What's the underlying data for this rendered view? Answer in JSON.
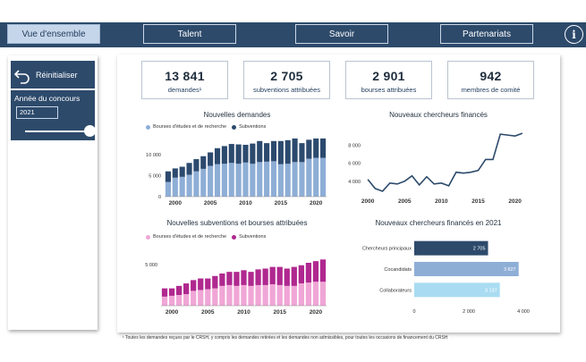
{
  "nav": {
    "tabs": [
      {
        "label": "Vue d'ensemble",
        "active": true
      },
      {
        "label": "Talent",
        "active": false
      },
      {
        "label": "Savoir",
        "active": false
      },
      {
        "label": "Partenariats",
        "active": false
      }
    ],
    "info_icon": "info-circle-icon",
    "info_glyph": "i"
  },
  "sidebar": {
    "reset_label": "Réinitialiser",
    "reset_icon": "undo-arrow-icon",
    "year_label": "Année du concours",
    "year_value": "2021",
    "slider_value": 2021
  },
  "kpis": [
    {
      "value": "13 841",
      "label": "demandes¹"
    },
    {
      "value": "2 705",
      "label": "subventions attribuées"
    },
    {
      "value": "2 901",
      "label": "bourses attribuées"
    },
    {
      "value": "942",
      "label": "membres de comité"
    }
  ],
  "colors": {
    "navy": "#2d4a6b",
    "bourses_bar": "#8eaed6",
    "subventions_bar": "#2c4a6e",
    "pink": "#f0a6d6",
    "magenta": "#b0288f",
    "line": "#2d4a6b",
    "hbar1": "#2d4a6b",
    "hbar2": "#8eaed6",
    "hbar3": "#a9dcf2"
  },
  "chart_data": [
    {
      "type": "bar",
      "stacked": true,
      "title": "Nouvelles demandes",
      "x": [
        1999,
        2000,
        2001,
        2002,
        2003,
        2004,
        2005,
        2006,
        2007,
        2008,
        2009,
        2010,
        2011,
        2012,
        2013,
        2014,
        2015,
        2016,
        2017,
        2018,
        2019,
        2020,
        2021
      ],
      "series": [
        {
          "name": "Bourses d'études et de recherche",
          "color": "#8eaed6",
          "values": [
            3500,
            4500,
            4700,
            5200,
            6000,
            6600,
            7300,
            7700,
            7800,
            8000,
            7800,
            8100,
            7800,
            8200,
            8300,
            8400,
            7700,
            7800,
            8200,
            8200,
            9000,
            9200,
            9200
          ]
        },
        {
          "name": "Subventions",
          "color": "#2c4a6e",
          "values": [
            2500,
            2200,
            2400,
            2800,
            2900,
            3000,
            3200,
            3800,
            4200,
            4500,
            4600,
            4200,
            4800,
            5000,
            4400,
            4800,
            5500,
            5600,
            5600,
            4500,
            4500,
            4600,
            4600
          ]
        }
      ],
      "yticks": [
        "0",
        "5 000",
        "10 000"
      ],
      "ylim": [
        0,
        14000
      ],
      "xticks": [
        "2000",
        "2005",
        "2010",
        "2015",
        "2020"
      ],
      "legend": "top-left",
      "grid": false
    },
    {
      "type": "line",
      "title": "Nouveaux chercheurs financés",
      "x": [
        2000,
        2001,
        2002,
        2003,
        2004,
        2005,
        2006,
        2007,
        2008,
        2009,
        2010,
        2011,
        2012,
        2013,
        2014,
        2015,
        2016,
        2017,
        2018,
        2019,
        2020,
        2021
      ],
      "values": [
        4200,
        3200,
        2900,
        3800,
        3700,
        4000,
        4600,
        3600,
        4500,
        3700,
        3800,
        3500,
        5000,
        4900,
        5000,
        5200,
        6400,
        6400,
        9200,
        9100,
        9000,
        9300
      ],
      "yticks": [
        "4 000",
        "6 000",
        "8 000"
      ],
      "ylim": [
        2500,
        10000
      ],
      "xticks": [
        "2000",
        "2005",
        "2010",
        "2015",
        "2020"
      ],
      "grid": false
    },
    {
      "type": "bar",
      "stacked": true,
      "title": "Nouvelles subventions et bourses attribuées",
      "x": [
        1999,
        2000,
        2001,
        2002,
        2003,
        2004,
        2005,
        2006,
        2007,
        2008,
        2009,
        2010,
        2011,
        2012,
        2013,
        2014,
        2015,
        2016,
        2017,
        2018,
        2019,
        2020,
        2021
      ],
      "series": [
        {
          "name": "Bourses d'études et de recherche",
          "color": "#f0a6d6",
          "values": [
            1100,
            1200,
            1300,
            1400,
            1800,
            1900,
            2000,
            2100,
            2400,
            2500,
            2400,
            2500,
            2400,
            2500,
            2500,
            2600,
            2500,
            2400,
            2400,
            2700,
            2800,
            2900,
            2900
          ]
        },
        {
          "name": "Subventions",
          "color": "#b0288f",
          "values": [
            1000,
            900,
            1100,
            1300,
            1300,
            1400,
            1300,
            1500,
            1500,
            1600,
            1700,
            1800,
            1700,
            1900,
            2000,
            2100,
            2200,
            2100,
            2300,
            2200,
            2400,
            2500,
            2700
          ]
        }
      ],
      "yticks": [
        "5 000"
      ],
      "ylim": [
        0,
        6500
      ],
      "xticks": [
        "2000",
        "2005",
        "2010",
        "2015",
        "2020"
      ],
      "legend": "top-left",
      "grid": false
    },
    {
      "type": "bar",
      "orientation": "horizontal",
      "title": "Nouveaux chercheurs financés en 2021",
      "categories": [
        "Chercheurs principaux",
        "Cocandidats",
        "Collaborateurs"
      ],
      "values": [
        2705,
        3827,
        3137
      ],
      "value_labels": [
        "2 705",
        "3 827",
        "3 137"
      ],
      "xticks": [
        "0",
        "2 000",
        "4 000"
      ],
      "xlim": [
        0,
        4000
      ],
      "grid": false
    }
  ],
  "footnote": "¹ Toutes les demandes reçues par le CRSH, y compris les demandes retirées et les demandes non admissibles, pour toutes les occasions de financement du CRSH"
}
